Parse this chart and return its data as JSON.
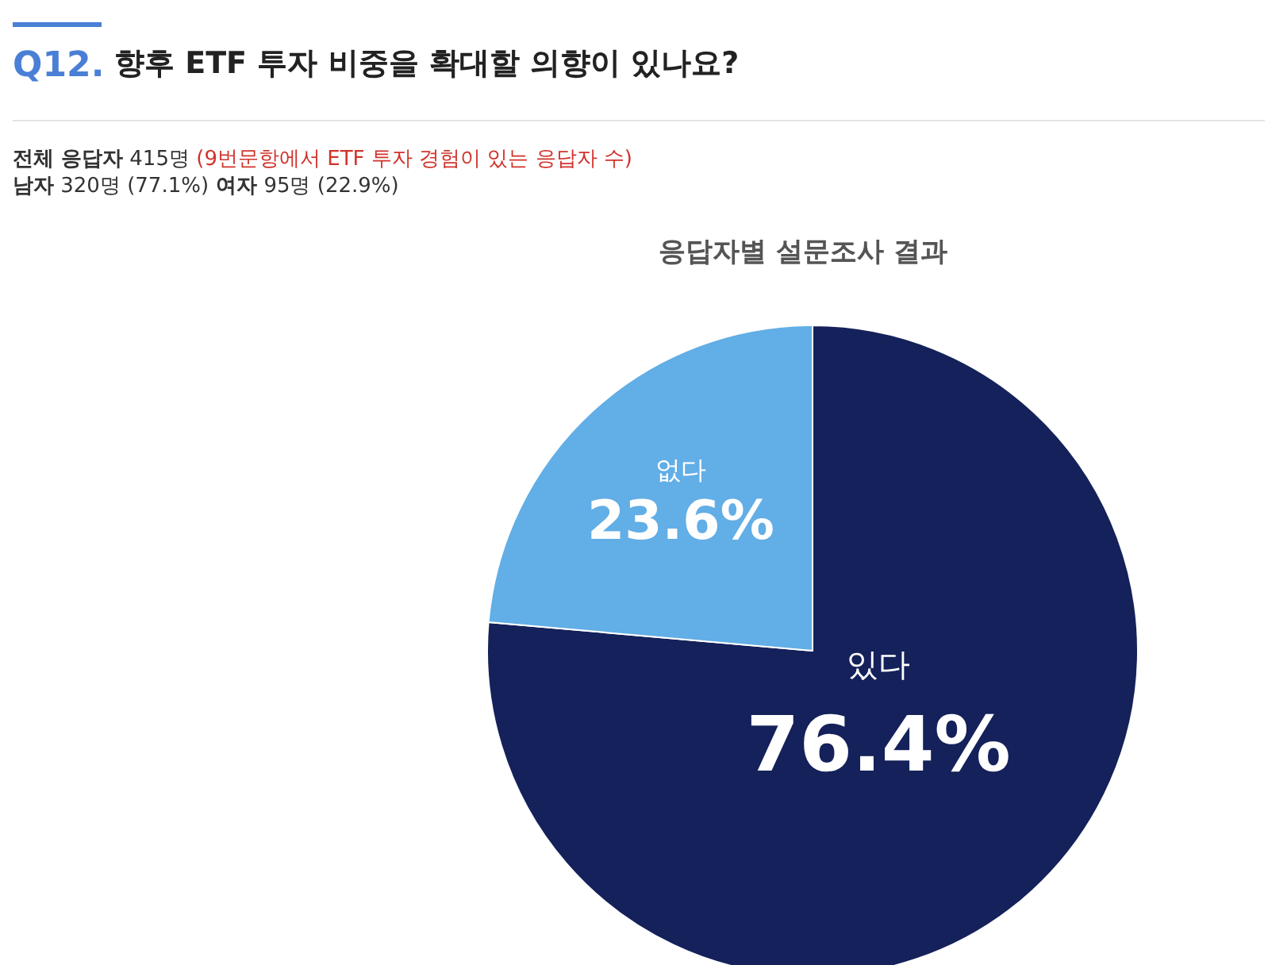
{
  "chart_data": {
    "type": "pie",
    "title": "향후 ETF 투자 비중을 확대할 의향이 있나요?",
    "subtitle": "응답자별 설문조사 결과",
    "annotations": [
      "Q12.",
      "전체 응답자 415명 (9번문항에서 ETF 투자 경험이 있는 응답자 수)",
      "남자 320명 (77.1%) 여자 95명 (22.9%)"
    ],
    "categories": [
      "있다",
      "없다"
    ],
    "values": [
      76.4,
      23.6
    ],
    "colors": [
      "#14215a",
      "#62aee6"
    ],
    "value_labels": [
      "76.4%",
      "23.6%"
    ]
  }
}
